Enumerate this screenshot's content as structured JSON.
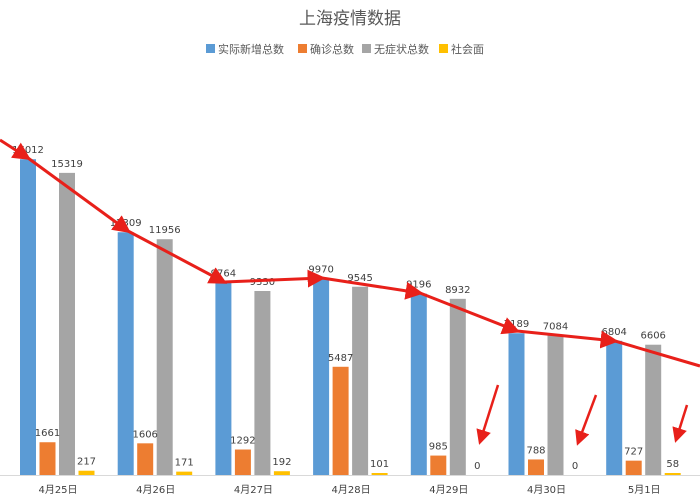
{
  "chart_data": {
    "type": "bar",
    "title": "上海疫情数据",
    "categories": [
      "4月25日",
      "4月26日",
      "4月27日",
      "4月28日",
      "4月29日",
      "4月30日",
      "5月1日"
    ],
    "series": [
      {
        "name": "实际新增总数",
        "color": "#5B9BD5",
        "values": [
          16012,
          12309,
          9764,
          9970,
          9196,
          7189,
          6804
        ]
      },
      {
        "name": "确诊总数",
        "color": "#ED7D31",
        "values": [
          1661,
          1606,
          1292,
          5487,
          985,
          788,
          727
        ]
      },
      {
        "name": "无症状总数",
        "color": "#A5A5A5",
        "values": [
          15319,
          11956,
          9330,
          9545,
          8932,
          7084,
          6606
        ]
      },
      {
        "name": "社会面",
        "color": "#FFC000",
        "values": [
          217,
          171,
          192,
          101,
          0,
          0,
          58
        ]
      }
    ],
    "ylim": [
      0,
      18000
    ],
    "legend_position": "top",
    "grid": false,
    "annotation_color": "#E8201A"
  }
}
